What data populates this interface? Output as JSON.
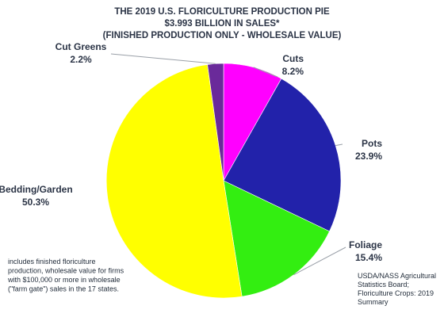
{
  "chart_data": {
    "type": "pie",
    "title_lines": [
      "THE 2019 U.S. FLORICULTURE PRODUCTION PIE",
      "$3.993 BILLION IN SALES*",
      "(FINISHED PRODUCTION ONLY - WHOLESALE VALUE)"
    ],
    "slices": [
      {
        "name": "Cuts",
        "percent_label": "8.2%",
        "value": 8.2,
        "color": "#ff00ff"
      },
      {
        "name": "Pots",
        "percent_label": "23.9%",
        "value": 23.9,
        "color": "#2222aa"
      },
      {
        "name": "Foliage",
        "percent_label": "15.4%",
        "value": 15.4,
        "color": "#33ee11"
      },
      {
        "name": "Bedding/Garden",
        "percent_label": "50.3%",
        "value": 50.3,
        "color": "#ffff00"
      },
      {
        "name": "Cut Greens",
        "percent_label": "2.2%",
        "value": 2.2,
        "color": "#6a2a9a"
      }
    ],
    "footnote_lines": [
      "includes finished floriculture",
      "production, wholesale value for firms",
      "with $100,000 or more in wholesale",
      "(\"farm gate\") sales in the 17 states."
    ],
    "source_lines": [
      "USDA/NASS Agricultural",
      "Statistics Board;",
      "Floriculture Crops: 2019",
      "Summary"
    ]
  }
}
